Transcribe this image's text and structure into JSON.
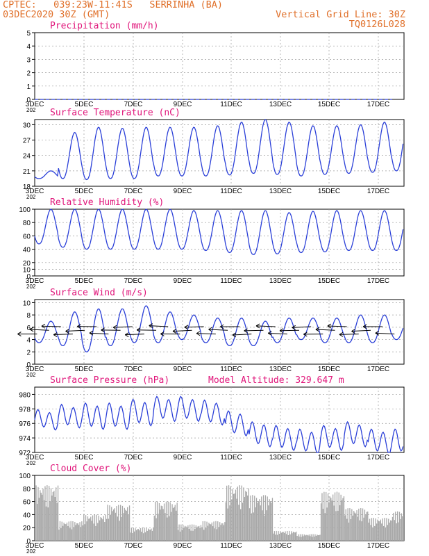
{
  "header": {
    "line1": "CPTEC:   039:23W-11:41S   SERRINHA (BA)",
    "line2": "03DEC2020 30Z (GMT)",
    "right1": "Vertical Grid Line: 30Z",
    "right2": "TQ0126L028"
  },
  "x_tick_labels": [
    "3DEC",
    "5DEC",
    "7DEC",
    "9DEC",
    "11DEC",
    "13DEC",
    "15DEC",
    "17DEC"
  ],
  "x_year_fragment": "202",
  "colors": {
    "header": "#e0702a",
    "title": "#e0157a",
    "line": "#2a3fd8",
    "bar": "#a8a8a8",
    "grid": "#9a9a9a"
  },
  "chart_data": [
    {
      "type": "line",
      "title": "Precipitation (mm/h)",
      "ylim": [
        0,
        5
      ],
      "yticks": [
        0,
        1,
        2,
        3,
        4,
        5
      ],
      "x_start": "3DEC",
      "x_days": 15.5,
      "series": [
        {
          "values": [
            0,
            0,
            0,
            0,
            0,
            0,
            0,
            0,
            0,
            0,
            0,
            0,
            0,
            0,
            0,
            0
          ]
        }
      ]
    },
    {
      "type": "line",
      "title": "Surface Temperature (nC)",
      "ylim": [
        18,
        31
      ],
      "yticks": [
        18,
        21,
        24,
        27,
        30
      ],
      "diurnal": true,
      "daily_max": [
        21,
        28.5,
        29.5,
        29.3,
        29.5,
        29.5,
        29.5,
        29.8,
        30.5,
        31,
        30.5,
        29.8,
        29.8,
        30,
        30.5,
        31
      ],
      "daily_min": [
        19.5,
        19.5,
        19.3,
        19.5,
        19.5,
        20,
        20,
        20,
        20.2,
        20.5,
        20.3,
        20,
        20.3,
        20.5,
        20.7,
        21
      ]
    },
    {
      "type": "line",
      "title": "Relative Humidity (%)",
      "ylim": [
        0,
        100
      ],
      "yticks": [
        0,
        10,
        20,
        40,
        60,
        80,
        100
      ],
      "diurnal": true,
      "daily_max": [
        100,
        100,
        100,
        100,
        100,
        100,
        98,
        98,
        98,
        98,
        95,
        97,
        98,
        98,
        98,
        98
      ],
      "daily_min": [
        48,
        43,
        40,
        40,
        40,
        40,
        40,
        38,
        35,
        32,
        33,
        35,
        36,
        38,
        38,
        38
      ]
    },
    {
      "type": "line",
      "title": "Surface Wind (m/s)",
      "ylim": [
        0,
        10.5
      ],
      "yticks": [
        0,
        2,
        4,
        6,
        8,
        10
      ],
      "diurnal": true,
      "daily_max": [
        7,
        8.5,
        9,
        9,
        9.5,
        8.5,
        8,
        7.5,
        7.5,
        7,
        7.5,
        7.5,
        7.5,
        8,
        8,
        7.5
      ],
      "daily_min": [
        3.5,
        3,
        2,
        3,
        3.5,
        3.5,
        4,
        3.5,
        3,
        3,
        3.5,
        4,
        3.5,
        3.5,
        3.5,
        4
      ],
      "wind_arrows": true
    },
    {
      "type": "line",
      "title": "Surface Pressure (hPa)",
      "annotation": "Model Altitude: 329.647 m",
      "ylim": [
        972,
        981
      ],
      "yticks": [
        972,
        974,
        976,
        978,
        980
      ],
      "semidiurnal": true,
      "daily_mean": [
        976.5,
        977,
        977,
        977,
        977.5,
        978,
        978,
        977.5,
        976,
        974.5,
        974,
        973.5,
        974,
        974.5,
        973.5,
        973.5
      ],
      "daily_amp": [
        1.2,
        1.4,
        1.6,
        1.6,
        1.6,
        1.5,
        1.5,
        1.5,
        1.5,
        1.5,
        1.5,
        1.5,
        1.5,
        1.5,
        1.5,
        1.5
      ]
    },
    {
      "type": "bar",
      "title": "Cloud Cover (%)",
      "ylim": [
        0,
        100
      ],
      "yticks": [
        0,
        20,
        40,
        60,
        80,
        100
      ],
      "daily_cover": [
        85,
        30,
        40,
        55,
        20,
        60,
        25,
        30,
        85,
        70,
        15,
        10,
        75,
        50,
        35,
        45
      ]
    }
  ]
}
